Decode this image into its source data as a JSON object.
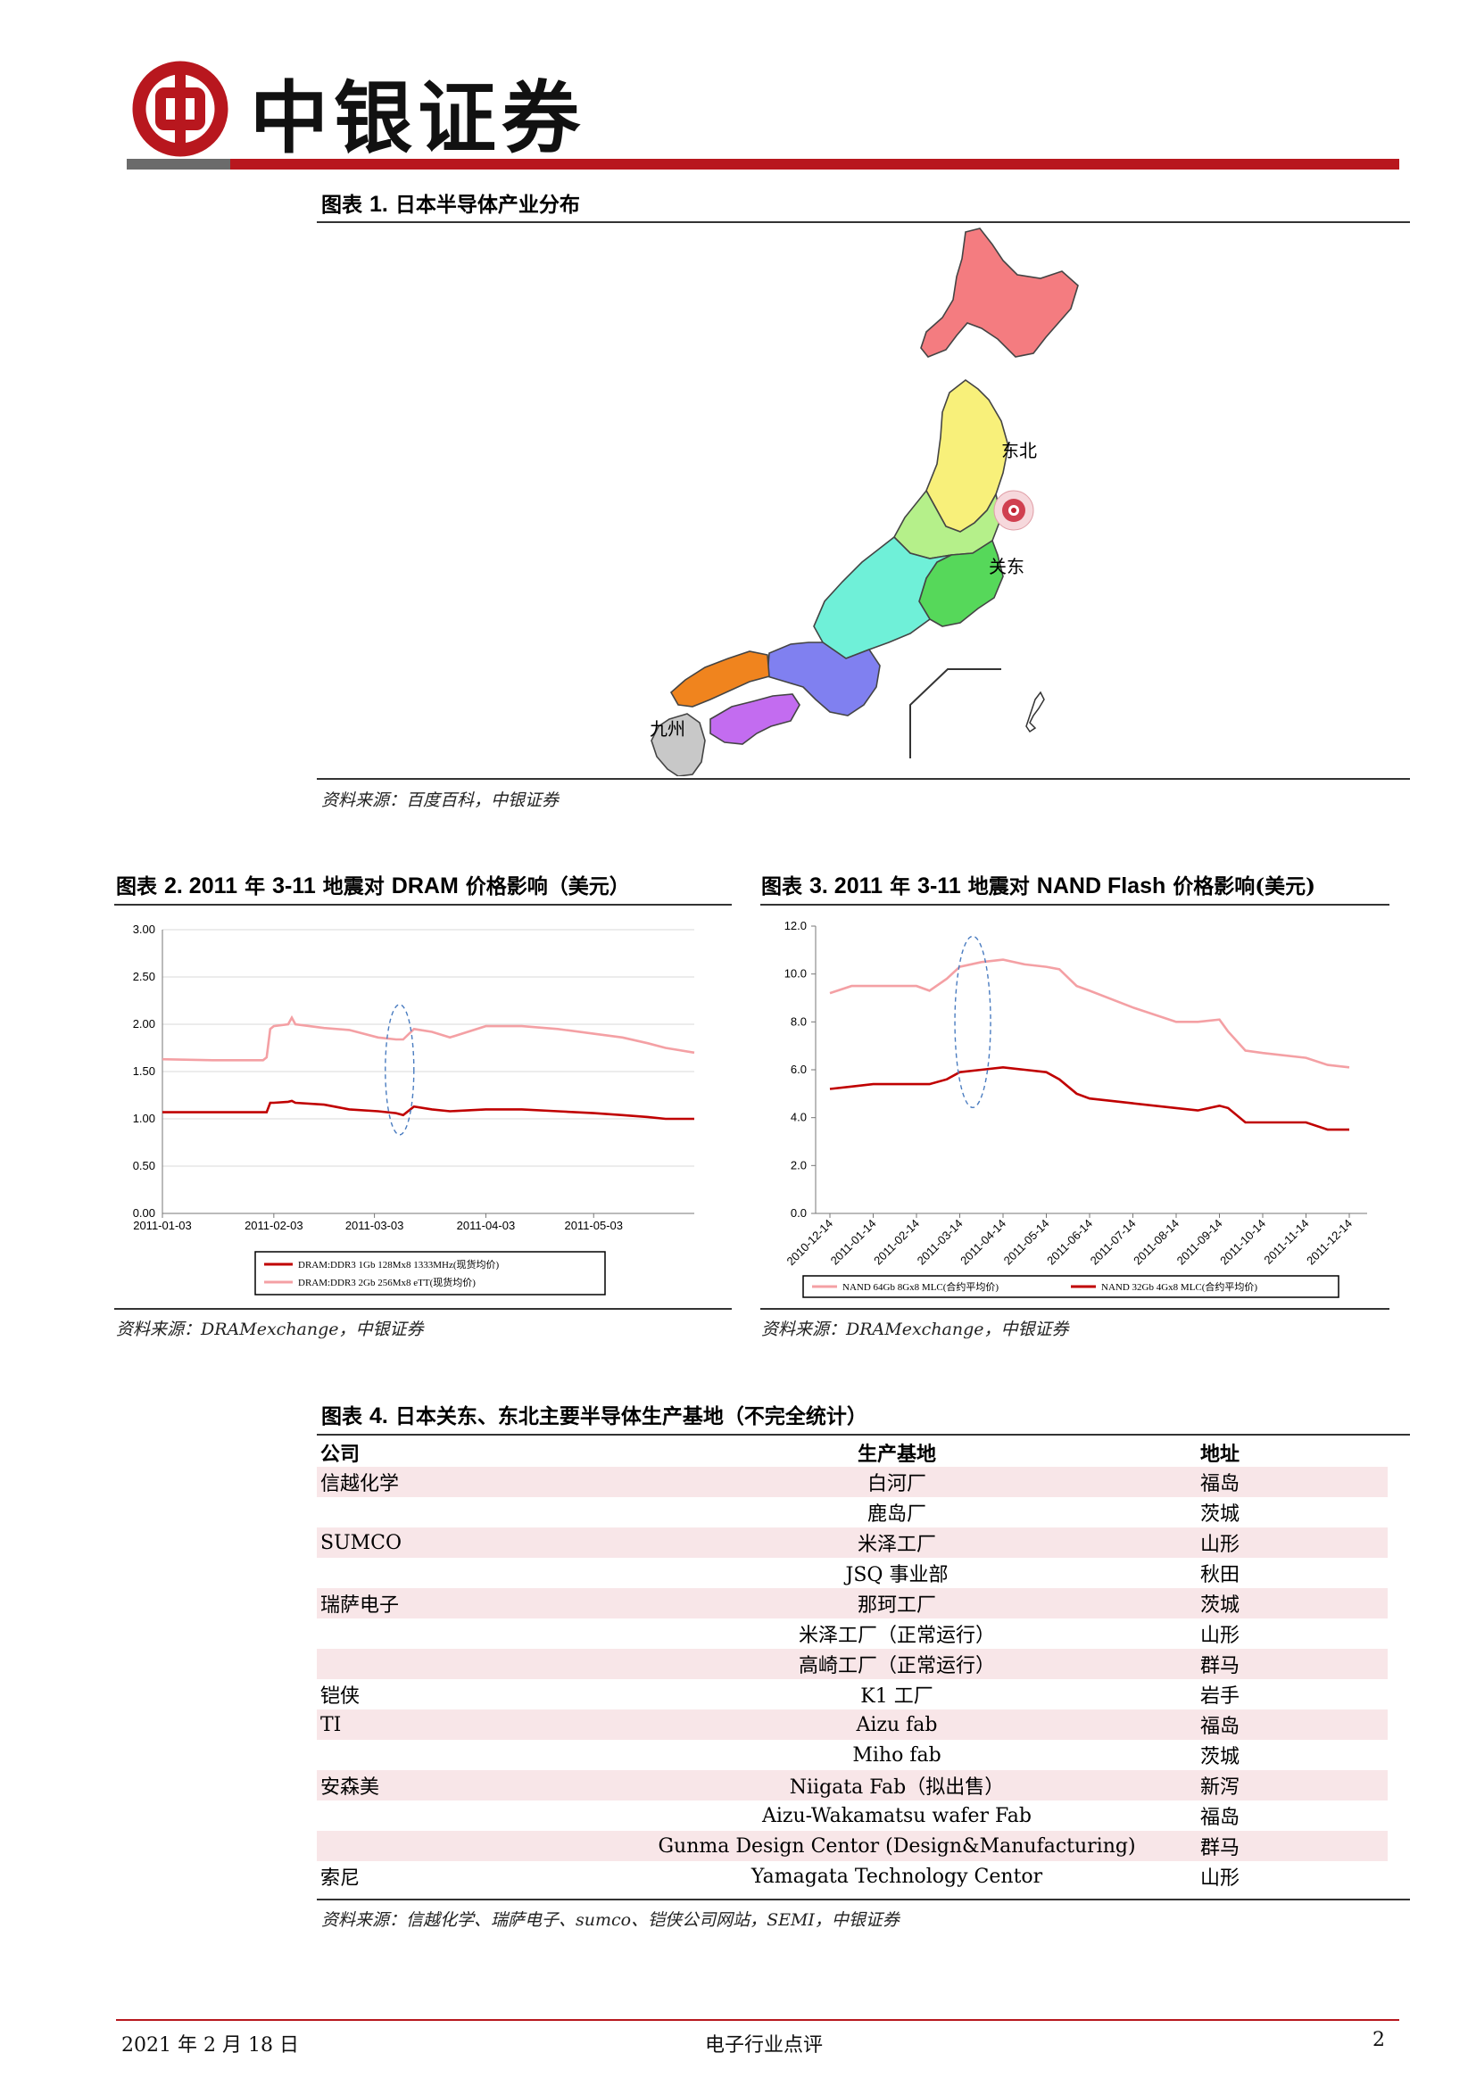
{
  "header": {
    "company": "中银证券"
  },
  "colors": {
    "brand_red": "#b8171e",
    "gray_bar": "#6b6b6b",
    "shade_row": "#f8e6e8"
  },
  "fig1": {
    "title_prefix": "图表",
    "title_num": "1.",
    "title_text": "日本半导体产业分布",
    "map_labels": {
      "tohoku": "东北",
      "kanto": "关东",
      "kyushu": "九州"
    },
    "source": "资料来源：百度百科，中银证券"
  },
  "fig2": {
    "title_prefix": "图表",
    "title_num": "2. 2011",
    "title_text": "年",
    "title_num2": "3-11",
    "title_text2": "地震对",
    "title_num3": "DRAM",
    "title_text3": "价格影响（美元）",
    "source": "资料来源：DRAMexchange，中银证券"
  },
  "fig3": {
    "title_prefix": "图表",
    "title_num": "3. 2011",
    "title_text": "年",
    "title_num2": "3-11",
    "title_text2": "地震对",
    "title_num3": "NAND Flash",
    "title_text3": "价格影响(美元)",
    "source": "资料来源：DRAMexchange，中银证券"
  },
  "chart_data": [
    {
      "type": "line",
      "title": "2011年3-11地震对DRAM价格影响（美元）",
      "xlabel": "",
      "ylabel": "",
      "ylim": [
        0,
        3
      ],
      "y_ticks": [
        "3.00",
        "2.50",
        "2.00",
        "1.50",
        "1.00",
        "0.50",
        "0.00"
      ],
      "x_ticks": [
        "2011-01-03",
        "2011-02-03",
        "2011-03-03",
        "2011-04-03",
        "2011-05-03"
      ],
      "x_range": [
        "2011-01-03",
        "2011-05-31"
      ],
      "x_days": [
        0,
        14,
        28,
        29,
        30,
        31,
        35,
        36,
        37,
        45,
        52,
        60,
        65,
        67,
        70,
        75,
        80,
        90,
        100,
        110,
        120,
        128,
        135,
        140,
        148
      ],
      "series": [
        {
          "name": "DRAM:DDR3 2Gb 256Mx8 eTT(现货均价)",
          "color": "#f4a0a4",
          "values": [
            1.63,
            1.62,
            1.62,
            1.65,
            1.95,
            1.98,
            2.0,
            2.07,
            2.0,
            1.96,
            1.94,
            1.86,
            1.84,
            1.84,
            1.95,
            1.92,
            1.86,
            1.98,
            1.98,
            1.95,
            1.9,
            1.86,
            1.8,
            1.75,
            1.7
          ]
        },
        {
          "name": "DRAM:DDR3 1Gb 128Mx8 1333MHz(现货均价)",
          "color": "#c00000",
          "values": [
            1.07,
            1.07,
            1.07,
            1.07,
            1.17,
            1.17,
            1.18,
            1.19,
            1.17,
            1.15,
            1.1,
            1.08,
            1.06,
            1.04,
            1.13,
            1.1,
            1.08,
            1.1,
            1.1,
            1.08,
            1.06,
            1.04,
            1.02,
            1.0,
            1.0
          ]
        }
      ],
      "annotation": "dashed ellipse around 2011-03-11"
    },
    {
      "type": "line",
      "title": "2011年3-11地震对NAND Flash价格影响(美元)",
      "xlabel": "",
      "ylabel": "",
      "ylim": [
        0,
        12
      ],
      "y_ticks": [
        "12.0",
        "10.0",
        "8.0",
        "6.0",
        "4.0",
        "2.0",
        "0.0"
      ],
      "x_ticks": [
        "2010-12-14",
        "2011-01-14",
        "2011-02-14",
        "2011-03-14",
        "2011-04-14",
        "2011-05-14",
        "2011-06-14",
        "2011-07-14",
        "2011-08-14",
        "2011-09-14",
        "2011-10-14",
        "2011-11-14",
        "2011-12-14"
      ],
      "x_months": [
        0,
        0.5,
        1,
        1.5,
        2,
        2.3,
        2.7,
        3,
        3.5,
        4,
        4.5,
        5,
        5.3,
        5.7,
        6,
        7,
        8,
        8.5,
        9,
        9.2,
        9.6,
        10,
        11,
        11.5,
        12
      ],
      "series": [
        {
          "name": "NAND 64Gb 8Gx8 MLC(合约平均价)",
          "color": "#f4a0a4",
          "values": [
            9.2,
            9.5,
            9.5,
            9.5,
            9.5,
            9.3,
            9.8,
            10.3,
            10.5,
            10.6,
            10.4,
            10.3,
            10.2,
            9.5,
            9.3,
            8.6,
            8.0,
            8.0,
            8.1,
            7.6,
            6.8,
            6.7,
            6.5,
            6.2,
            6.1
          ]
        },
        {
          "name": "NAND 32Gb 4Gx8 MLC(合约平均价)",
          "color": "#c00000",
          "values": [
            5.2,
            5.3,
            5.4,
            5.4,
            5.4,
            5.4,
            5.6,
            5.9,
            6.0,
            6.1,
            6.0,
            5.9,
            5.6,
            5.0,
            4.8,
            4.6,
            4.4,
            4.3,
            4.5,
            4.4,
            3.8,
            3.8,
            3.8,
            3.5,
            3.5
          ]
        }
      ],
      "annotation": "dashed ellipse around 2011-03/04"
    }
  ],
  "fig4": {
    "title_prefix": "图表",
    "title_num": "4.",
    "title_text": "日本关东、东北主要半导体生产基地（不完全统计）",
    "headers": {
      "company": "公司",
      "base": "生产基地",
      "address": "地址"
    },
    "rows": [
      {
        "company": "信越化学",
        "base": "白河厂",
        "address": "福岛"
      },
      {
        "company": "",
        "base": "鹿岛厂",
        "address": "茨城"
      },
      {
        "company": "SUMCO",
        "base": "米泽工厂",
        "address": "山形"
      },
      {
        "company": "",
        "base": "JSQ 事业部",
        "address": "秋田"
      },
      {
        "company": "瑞萨电子",
        "base": "那珂工厂",
        "address": "茨城"
      },
      {
        "company": "",
        "base": "米泽工厂（正常运行）",
        "address": "山形"
      },
      {
        "company": "",
        "base": "高崎工厂（正常运行）",
        "address": "群马"
      },
      {
        "company": "铠侠",
        "base": "K1 工厂",
        "address": "岩手"
      },
      {
        "company": "TI",
        "base": "Aizu fab",
        "address": "福岛"
      },
      {
        "company": "",
        "base": "Miho fab",
        "address": "茨城"
      },
      {
        "company": "安森美",
        "base": "Niigata Fab（拟出售）",
        "address": "新泻"
      },
      {
        "company": "",
        "base": "Aizu-Wakamatsu wafer Fab",
        "address": "福岛"
      },
      {
        "company": "",
        "base": "Gunma Design Centor (Design&Manufacturing)",
        "address": "群马"
      },
      {
        "company": "索尼",
        "base": "Yamagata Technology Centor",
        "address": "山形"
      }
    ],
    "source": "资料来源：信越化学、瑞萨电子、sumco、铠侠公司网站，SEMI，中银证券"
  },
  "footer": {
    "date": "2021 年 2 月 18 日",
    "report_type": "电子行业点评",
    "page": "2"
  }
}
